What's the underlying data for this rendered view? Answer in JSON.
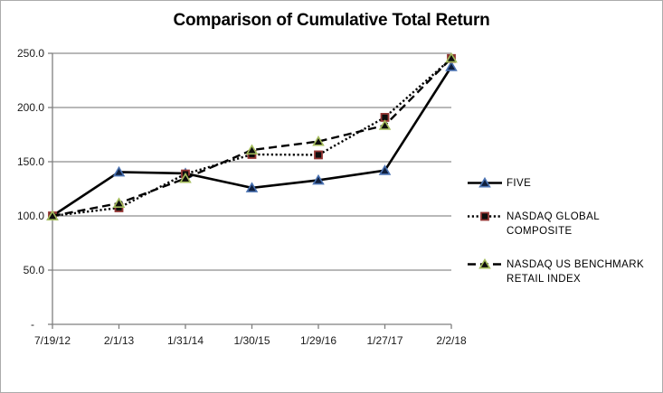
{
  "chart_data": {
    "type": "line",
    "title": "Comparison of Cumulative Total Return",
    "categories": [
      "7/19/12",
      "2/1/13",
      "1/31/14",
      "1/30/15",
      "1/29/16",
      "1/27/17",
      "2/2/18"
    ],
    "xlabel": "",
    "ylabel": "",
    "ylim": [
      0,
      250
    ],
    "grid": true,
    "legend_position": "right",
    "y_ticks": [
      {
        "label": "250.0",
        "value": 250
      },
      {
        "label": "200.0",
        "value": 200
      },
      {
        "label": "150.0",
        "value": 150
      },
      {
        "label": "100.0",
        "value": 100
      },
      {
        "label": "50.0",
        "value": 50
      },
      {
        "label": "-",
        "value": 0
      }
    ],
    "series": [
      {
        "name": "FIVE",
        "values": [
          100.0,
          140.5,
          139.2,
          125.9,
          133.0,
          141.9,
          237.7
        ],
        "line_style": "solid",
        "marker": "triangle",
        "line_color": "#000000",
        "marker_fill": "#0f1f3d",
        "marker_stroke": "#4a72b2"
      },
      {
        "name": "NASDAQ GLOBAL COMPOSITE",
        "values": [
          100.0,
          107.5,
          138.7,
          156.7,
          156.3,
          190.9,
          245.2
        ],
        "line_style": "dotted",
        "marker": "square",
        "line_color": "#000000",
        "marker_fill": "#0d0d0d",
        "marker_stroke": "#943634"
      },
      {
        "name": "NASDAQ US BENCHMARK RETAIL INDEX",
        "values": [
          100.0,
          111.7,
          134.6,
          160.8,
          168.7,
          183.5,
          245.5
        ],
        "line_style": "dashed",
        "marker": "triangle",
        "line_color": "#000000",
        "marker_fill": "#0d0d0d",
        "marker_stroke": "#a5bd5d"
      }
    ],
    "colors": {
      "gridline": "#8e8e8e",
      "axis": "#7f7f7f",
      "title_color": "#000000",
      "label_color": "#1a1a1a",
      "background": "#ffffff",
      "border": "#ababab"
    }
  }
}
